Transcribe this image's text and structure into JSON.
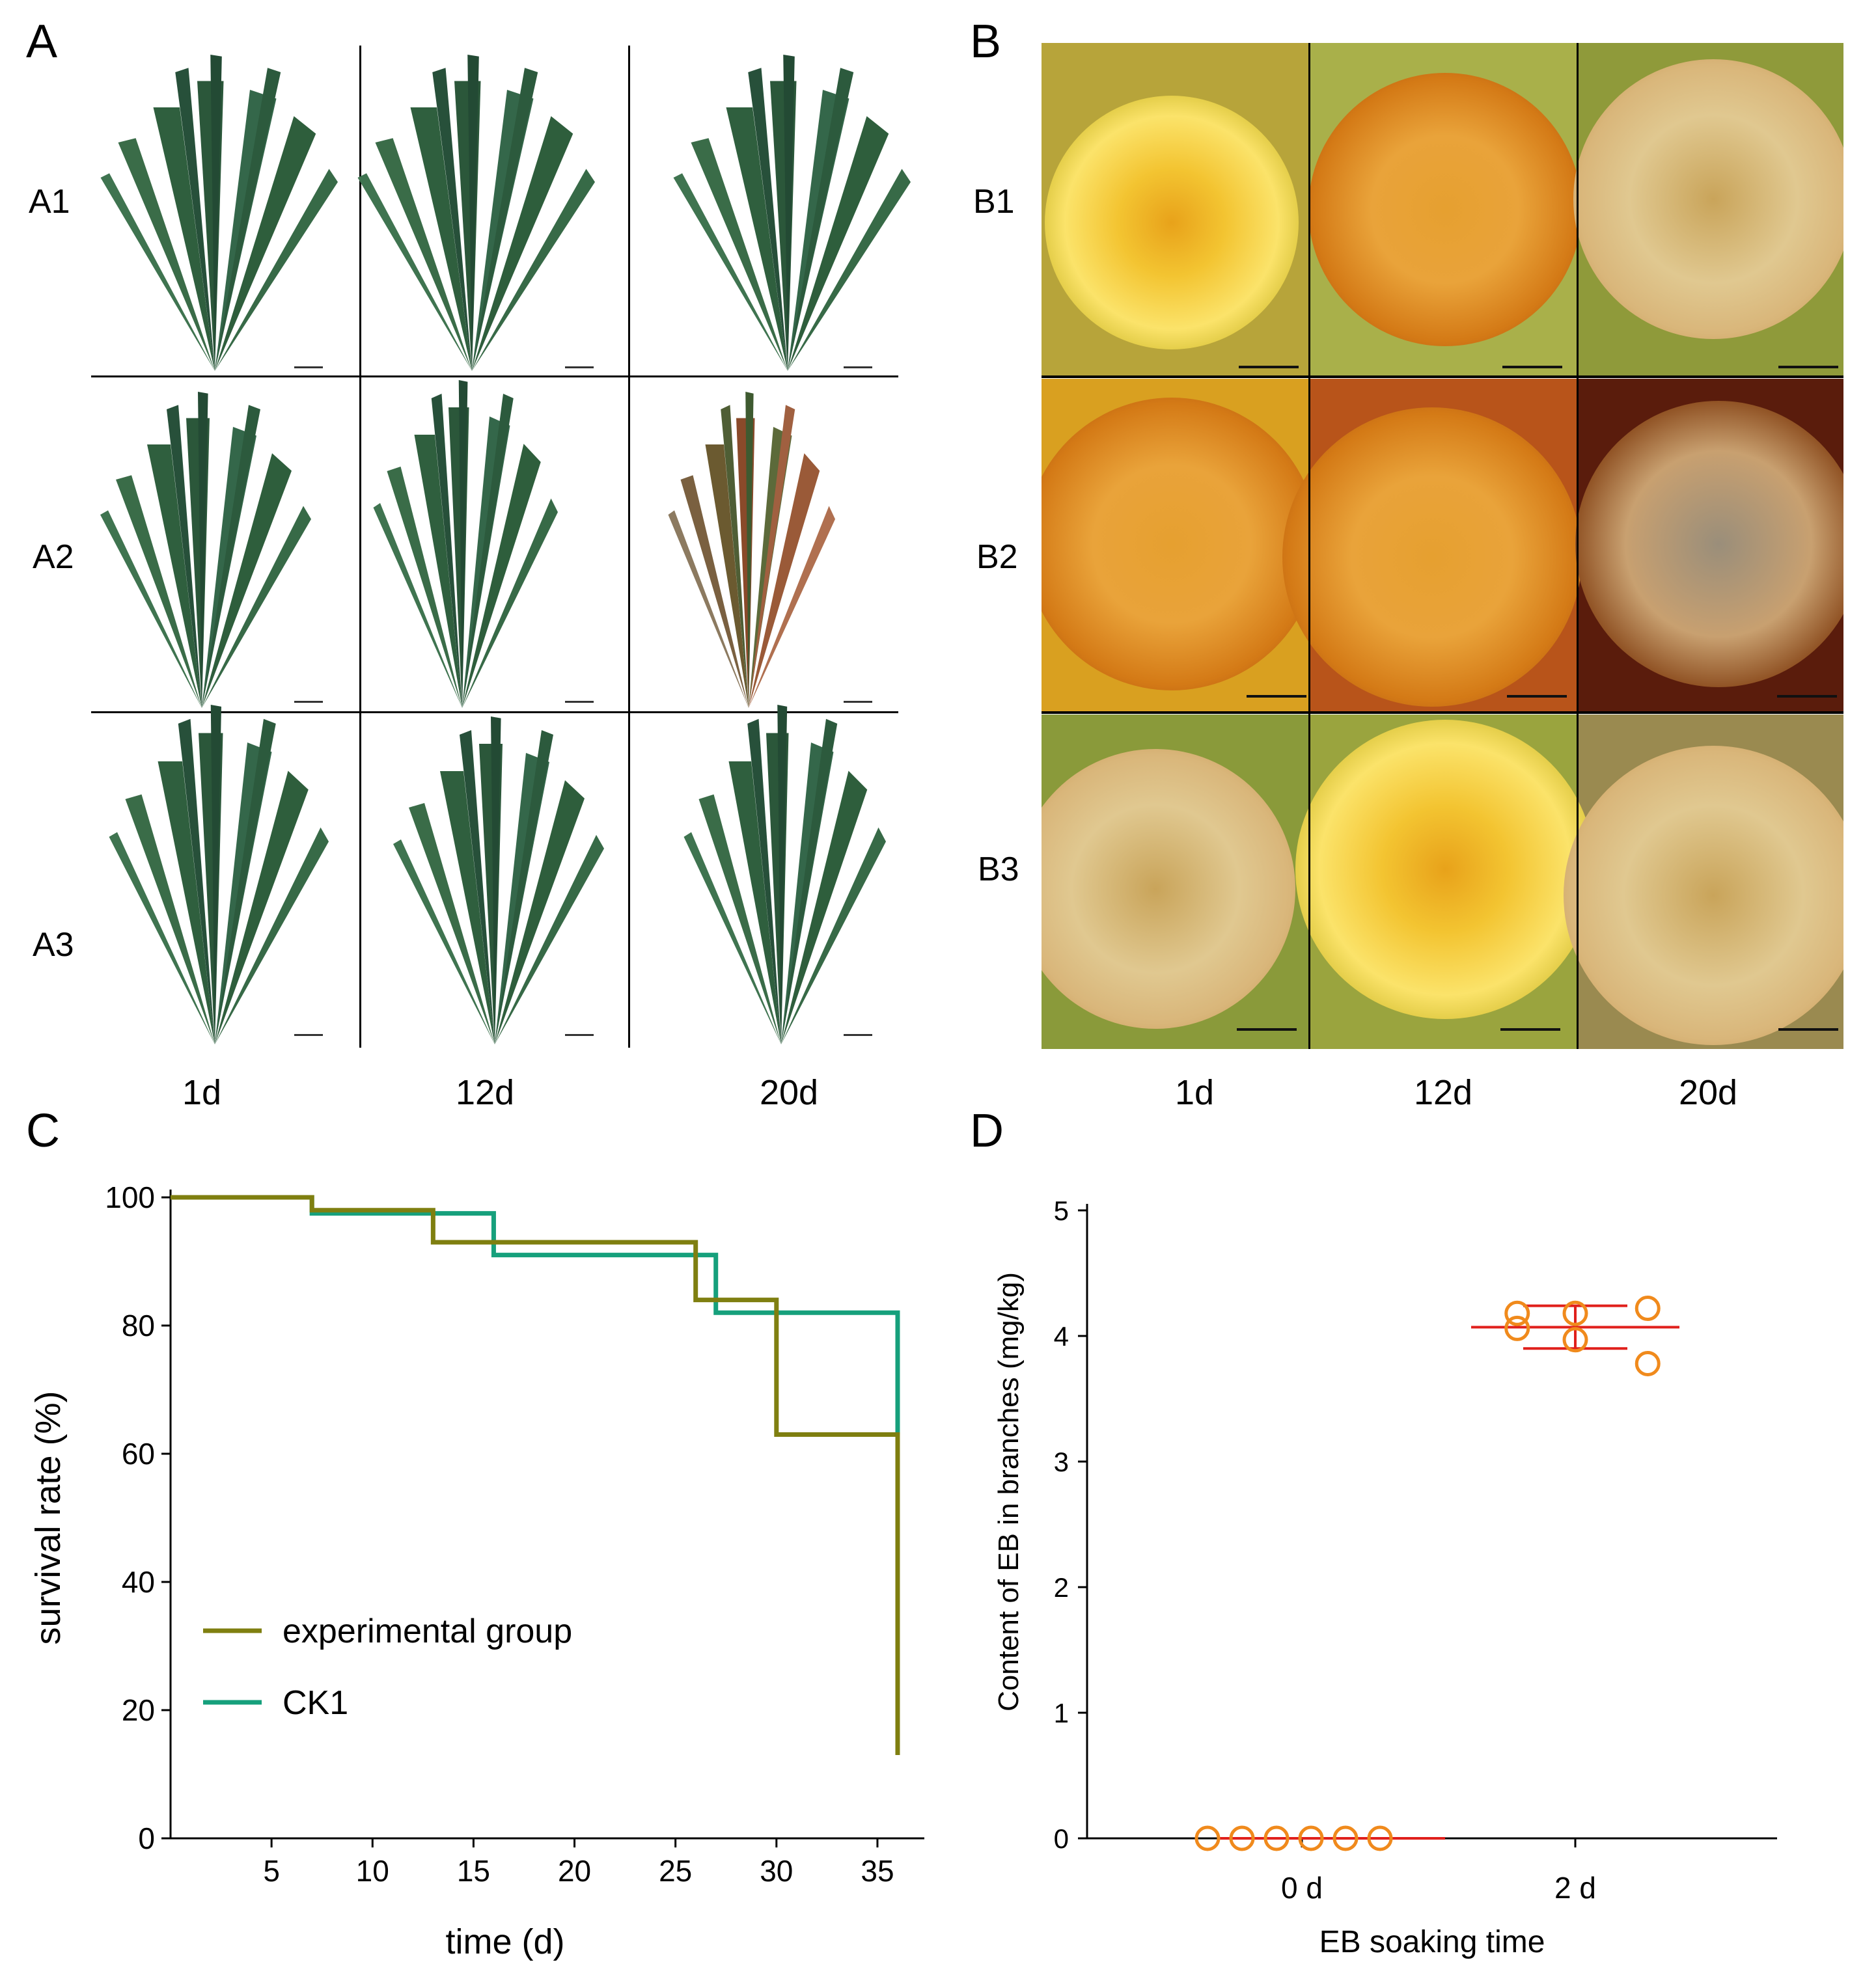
{
  "panels": {
    "a": "A",
    "b": "B",
    "c": "C",
    "d": "D"
  },
  "panel_a": {
    "rows": [
      "A1",
      "A2",
      "A3"
    ],
    "columns": [
      "1d",
      "12d",
      "20d"
    ]
  },
  "panel_b": {
    "rows": [
      "B1",
      "B2",
      "B3"
    ],
    "columns": [
      "1d",
      "12d",
      "20d"
    ]
  },
  "colors": {
    "needle_green": "#2e5e3c",
    "experimental": "#7f7f10",
    "ck1": "#16a07c",
    "dot": "#f08a1c",
    "mean_line": "#e0201c"
  },
  "chart_data": [
    {
      "type": "line",
      "title": "",
      "xlabel": "time (d)",
      "ylabel": "survival rate (%)",
      "xlim": [
        0,
        37
      ],
      "ylim": [
        0,
        100
      ],
      "xticks": [
        5,
        10,
        15,
        20,
        25,
        30,
        35
      ],
      "yticks": [
        0,
        20,
        40,
        60,
        80,
        100
      ],
      "legend_position": "center-left",
      "series": [
        {
          "name": "experimental group",
          "step": true,
          "x": [
            0,
            7,
            13,
            26,
            30,
            36,
            36
          ],
          "y": [
            100,
            98,
            93,
            84,
            63,
            63,
            13
          ]
        },
        {
          "name": "CK1",
          "step": true,
          "x": [
            0,
            7,
            16,
            27,
            36,
            36
          ],
          "y": [
            100,
            97.5,
            91,
            82,
            82,
            63
          ]
        }
      ]
    },
    {
      "type": "scatter",
      "title": "",
      "xlabel": "EB soaking time",
      "ylabel": "Content of EB in branches (mg/kg)",
      "categories": [
        "0 d",
        "2 d"
      ],
      "ylim": [
        0,
        5
      ],
      "yticks": [
        0,
        1,
        2,
        3,
        4,
        5
      ],
      "groups": [
        {
          "category": "0 d",
          "values": [
            0,
            0,
            0,
            0,
            0,
            0
          ],
          "mean": 0,
          "sd": 0
        },
        {
          "category": "2 d",
          "values": [
            4.18,
            4.06,
            4.18,
            3.97,
            4.22,
            3.78
          ],
          "mean": 4.07,
          "sd": 0.17
        }
      ]
    }
  ]
}
